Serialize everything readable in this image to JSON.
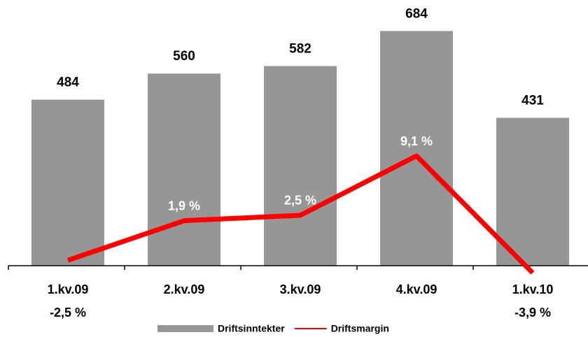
{
  "chart_data": {
    "type": "bar",
    "categories": [
      "1.kv.09",
      "2.kv.09",
      "3.kv.09",
      "4.kv.09",
      "1.kv.10"
    ],
    "series": [
      {
        "name": "Driftsinntekter",
        "type": "bar",
        "color": "#969696",
        "values": [
          484,
          560,
          582,
          684,
          431
        ]
      },
      {
        "name": "Driftsmargin",
        "type": "line",
        "axis": "y2",
        "color": "#ff0000",
        "values": [
          -2.5,
          1.9,
          2.5,
          9.1,
          -3.9
        ],
        "value_labels": [
          "-2,5 %",
          "1,9 %",
          "2,5 %",
          "9,1 %",
          "-3,9 %"
        ]
      }
    ],
    "ylim": [
      0,
      750
    ],
    "y2lim": [
      -3.1,
      25.5
    ],
    "legend": "bottom"
  }
}
